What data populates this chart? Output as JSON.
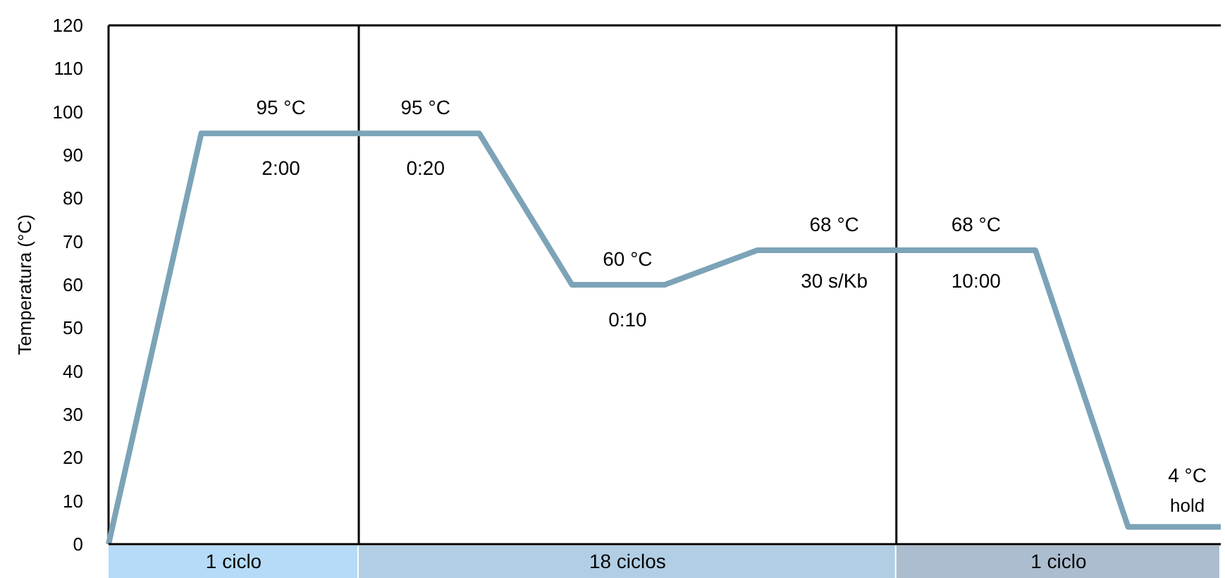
{
  "chart_data": {
    "type": "line",
    "ylabel": "Temperatura (°C)",
    "categories": [
      null,
      null,
      null,
      null,
      null,
      null,
      null,
      null,
      null,
      null,
      null,
      null,
      null
    ],
    "series": [
      {
        "color": "#7ca3b7",
        "values": [
          0,
          95,
          95,
          95,
          95,
          60,
          60,
          68,
          68,
          68,
          68,
          4,
          4
        ]
      }
    ],
    "ylim": [
      0,
      120
    ],
    "yticks": [
      0,
      10,
      20,
      30,
      40,
      50,
      60,
      70,
      80,
      90,
      100,
      110,
      120
    ],
    "tick_labels": "y",
    "line_style": "solid",
    "annotations": [
      "95 °C",
      "2:00",
      "95 °C",
      "0:20",
      "60 °C",
      "0:10",
      "68 °C",
      "30 s/Kb",
      "68 °C",
      "10:00",
      "4 °C",
      "hold",
      "1 ciclo",
      "18 ciclos",
      "1 ciclo"
    ]
  }
}
